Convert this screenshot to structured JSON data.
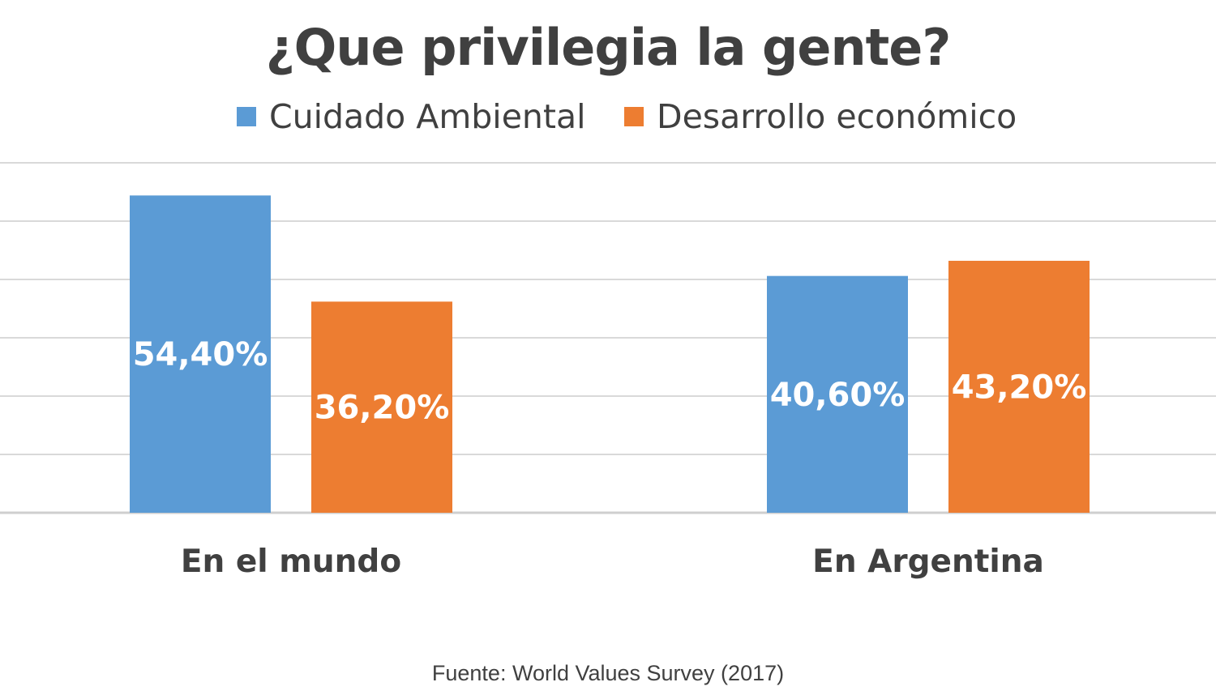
{
  "chart_data": {
    "type": "bar",
    "title": "¿Que privilegia la gente?",
    "categories": [
      "En el mundo",
      "En Argentina"
    ],
    "series": [
      {
        "name": "Cuidado Ambiental",
        "color": "#5b9bd5",
        "values": [
          54.4,
          40.6
        ],
        "labels": [
          "54,40%",
          "40,60%"
        ]
      },
      {
        "name": "Desarrollo económico",
        "color": "#ed7d31",
        "values": [
          36.2,
          43.2
        ],
        "labels": [
          "36,20%",
          "43,20%"
        ]
      }
    ],
    "ylim": [
      0,
      60
    ],
    "grid": true,
    "legend_position": "top",
    "source": "Fuente: World Values Survey (2017)"
  }
}
